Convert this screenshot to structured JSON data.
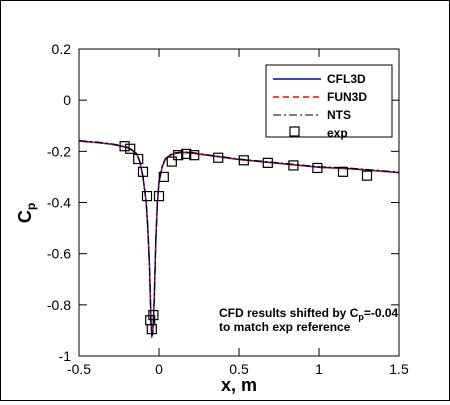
{
  "chart_data": {
    "type": "line",
    "xlabel": "x, m",
    "ylabel": "C",
    "ylabel_subscript": "p",
    "xlim": [
      -0.5,
      1.5
    ],
    "ylim": [
      -1.0,
      0.2
    ],
    "xticks": [
      -0.5,
      0,
      0.5,
      1,
      1.5
    ],
    "xtick_labels": [
      "-0.5",
      "0",
      "0.5",
      "1",
      "1.5"
    ],
    "yticks": [
      0.2,
      0,
      -0.2,
      -0.4,
      -0.6,
      -0.8,
      -1.0
    ],
    "ytick_labels": [
      "0.2",
      "0",
      "-0.2",
      "-0.4",
      "-0.6",
      "-0.8",
      "-1"
    ],
    "grid": false,
    "legend_position": "top-right",
    "legend": [
      "CFL3D",
      "FUN3D",
      "NTS",
      "exp"
    ],
    "annotation": [
      "CFD results shifted by C",
      "p",
      "=-0.04",
      "to match exp reference"
    ],
    "series": [
      {
        "name": "CFL3D",
        "style": "solid",
        "color": "#0000cc",
        "x": [
          -0.5,
          -0.4,
          -0.3,
          -0.25,
          -0.2,
          -0.17,
          -0.14,
          -0.12,
          -0.1,
          -0.08,
          -0.07,
          -0.06,
          -0.055,
          -0.05,
          -0.045,
          -0.04,
          -0.035,
          -0.03,
          -0.025,
          -0.02,
          -0.01,
          0.0,
          0.02,
          0.04,
          0.07,
          0.1,
          0.15,
          0.2,
          0.3,
          0.5,
          0.8,
          1.0,
          1.2,
          1.5
        ],
        "y": [
          -0.16,
          -0.165,
          -0.172,
          -0.178,
          -0.185,
          -0.195,
          -0.21,
          -0.24,
          -0.3,
          -0.4,
          -0.5,
          -0.64,
          -0.75,
          -0.87,
          -0.92,
          -0.915,
          -0.86,
          -0.78,
          -0.67,
          -0.55,
          -0.4,
          -0.32,
          -0.26,
          -0.23,
          -0.215,
          -0.208,
          -0.204,
          -0.206,
          -0.215,
          -0.232,
          -0.25,
          -0.262,
          -0.268,
          -0.283
        ]
      },
      {
        "name": "FUN3D",
        "style": "dashed",
        "color": "#ff0000",
        "x": [
          -0.5,
          -0.4,
          -0.3,
          -0.25,
          -0.2,
          -0.17,
          -0.14,
          -0.12,
          -0.1,
          -0.08,
          -0.07,
          -0.06,
          -0.055,
          -0.05,
          -0.045,
          -0.04,
          -0.035,
          -0.03,
          -0.025,
          -0.02,
          -0.01,
          0.0,
          0.02,
          0.04,
          0.07,
          0.1,
          0.15,
          0.2,
          0.3,
          0.5,
          0.8,
          1.0,
          1.2,
          1.5
        ],
        "y": [
          -0.16,
          -0.165,
          -0.172,
          -0.178,
          -0.185,
          -0.195,
          -0.21,
          -0.24,
          -0.3,
          -0.4,
          -0.5,
          -0.64,
          -0.75,
          -0.87,
          -0.925,
          -0.92,
          -0.865,
          -0.785,
          -0.675,
          -0.555,
          -0.405,
          -0.322,
          -0.262,
          -0.232,
          -0.216,
          -0.209,
          -0.205,
          -0.207,
          -0.216,
          -0.233,
          -0.251,
          -0.263,
          -0.269,
          -0.284
        ]
      },
      {
        "name": "NTS",
        "style": "dashdot",
        "color": "#000000",
        "x": [
          -0.5,
          -0.4,
          -0.3,
          -0.25,
          -0.2,
          -0.17,
          -0.14,
          -0.12,
          -0.1,
          -0.08,
          -0.07,
          -0.06,
          -0.055,
          -0.05,
          -0.045,
          -0.04,
          -0.035,
          -0.03,
          -0.025,
          -0.02,
          -0.01,
          0.0,
          0.02,
          0.04,
          0.07,
          0.1,
          0.15,
          0.2,
          0.3,
          0.5,
          0.8,
          1.0,
          1.2,
          1.5
        ],
        "y": [
          -0.158,
          -0.163,
          -0.17,
          -0.176,
          -0.183,
          -0.193,
          -0.208,
          -0.238,
          -0.298,
          -0.398,
          -0.498,
          -0.638,
          -0.748,
          -0.868,
          -0.918,
          -0.913,
          -0.858,
          -0.778,
          -0.668,
          -0.548,
          -0.398,
          -0.318,
          -0.258,
          -0.228,
          -0.213,
          -0.206,
          -0.202,
          -0.204,
          -0.213,
          -0.23,
          -0.248,
          -0.26,
          -0.266,
          -0.281
        ]
      },
      {
        "name": "exp",
        "style": "markers",
        "color": "#000000",
        "x": [
          -0.215,
          -0.18,
          -0.13,
          -0.1,
          -0.075,
          -0.055,
          -0.045,
          -0.035,
          0.0,
          0.03,
          0.08,
          0.12,
          0.17,
          0.22,
          0.37,
          0.53,
          0.68,
          0.84,
          0.99,
          1.15,
          1.3
        ],
        "y": [
          -0.18,
          -0.19,
          -0.23,
          -0.28,
          -0.375,
          -0.86,
          -0.895,
          -0.84,
          -0.375,
          -0.3,
          -0.24,
          -0.215,
          -0.21,
          -0.215,
          -0.225,
          -0.235,
          -0.245,
          -0.255,
          -0.265,
          -0.28,
          -0.295
        ]
      }
    ]
  }
}
